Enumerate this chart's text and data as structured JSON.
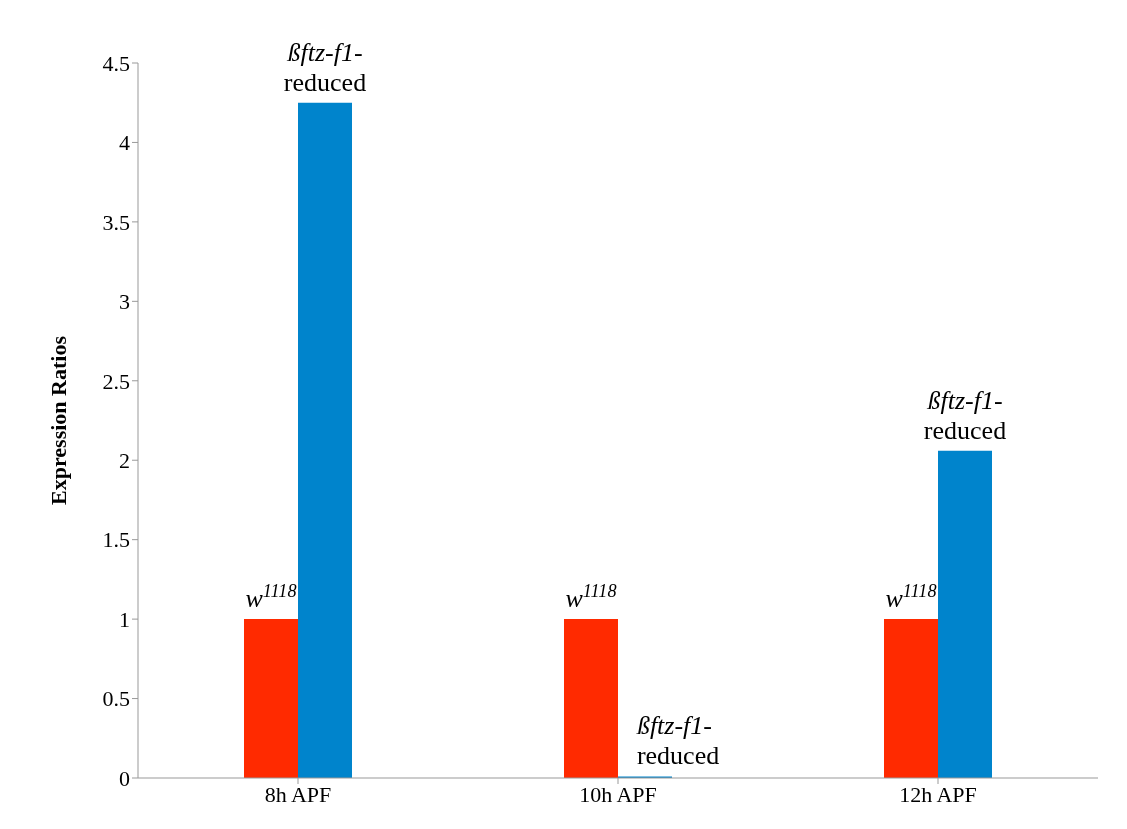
{
  "chart_data": {
    "type": "bar",
    "ylabel": "Expression Ratios",
    "categories": [
      "8h APF",
      "10h APF",
      "12h APF"
    ],
    "series": [
      {
        "color": "#ff2a00",
        "values": [
          1,
          1,
          1
        ]
      },
      {
        "color": "#0084cc",
        "values": [
          4.25,
          0.01,
          2.06
        ]
      }
    ],
    "ylim": [
      0,
      4.5
    ],
    "yticks": [
      0,
      0.5,
      1,
      1.5,
      2,
      2.5,
      3,
      3.5,
      4,
      4.5
    ],
    "grid": false,
    "legend": false,
    "annotations": [
      {
        "text": "w$^{1118}$",
        "x": "8h APF",
        "y": 1
      },
      {
        "text": "ßftz-f1-\nreduced",
        "x": "8h APF",
        "y": 4.25
      },
      {
        "text": "w$^{1118}$",
        "x": "10h APF",
        "y": 1
      },
      {
        "text": "ßftz-f1-\nreduced",
        "x": "10h APF",
        "y": 0.01
      },
      {
        "text": "w$^{1118}$",
        "x": "12h APF",
        "y": 1
      },
      {
        "text": "ßftz-f1-\nreduced",
        "x": "12h APF",
        "y": 2.06
      }
    ]
  }
}
